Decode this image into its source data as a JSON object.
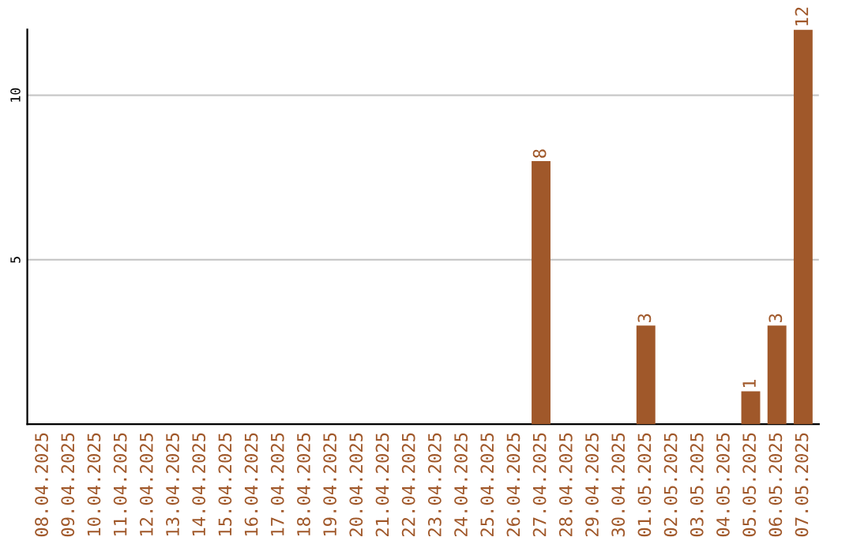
{
  "chart_data": {
    "type": "bar",
    "categories": [
      "08.04.2025",
      "09.04.2025",
      "10.04.2025",
      "11.04.2025",
      "12.04.2025",
      "13.04.2025",
      "14.04.2025",
      "15.04.2025",
      "16.04.2025",
      "17.04.2025",
      "18.04.2025",
      "19.04.2025",
      "20.04.2025",
      "21.04.2025",
      "22.04.2025",
      "23.04.2025",
      "24.04.2025",
      "25.04.2025",
      "26.04.2025",
      "27.04.2025",
      "28.04.2025",
      "29.04.2025",
      "30.04.2025",
      "01.05.2025",
      "02.05.2025",
      "03.05.2025",
      "04.05.2025",
      "05.05.2025",
      "06.05.2025",
      "07.05.2025"
    ],
    "values": [
      0,
      0,
      0,
      0,
      0,
      0,
      0,
      0,
      0,
      0,
      0,
      0,
      0,
      0,
      0,
      0,
      0,
      0,
      0,
      8,
      0,
      0,
      0,
      3,
      0,
      0,
      0,
      1,
      3,
      12
    ],
    "value_labels": [
      null,
      null,
      null,
      null,
      null,
      null,
      null,
      null,
      null,
      null,
      null,
      null,
      null,
      null,
      null,
      null,
      null,
      null,
      null,
      "8",
      null,
      null,
      null,
      "3",
      null,
      null,
      null,
      "1",
      "3",
      "12"
    ],
    "color": "#a0582a",
    "ylim": [
      0,
      12
    ],
    "yticks": [
      5,
      10
    ],
    "grid": "y"
  }
}
